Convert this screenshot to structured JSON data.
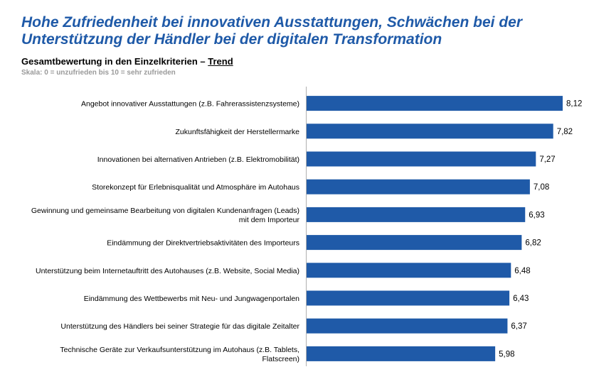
{
  "headline": "Hohe Zufriedenheit bei innovativen Ausstattungen, Schwächen bei der Unterstützung der Händler bei der digitalen Transformation",
  "subtitle_main": "Gesamtbewertung in den Einzelkriterien – ",
  "subtitle_trend": "Trend",
  "scale_note": "Skala: 0 = unzufrieden bis 10 = sehr zufrieden",
  "colors": {
    "bar": "#1f5aa8",
    "headline": "#1f5aa8",
    "axis": "#b0b0b0"
  },
  "chart_data": {
    "type": "bar",
    "orientation": "horizontal",
    "title": "Gesamtbewertung in den Einzelkriterien – Trend",
    "xlabel": "",
    "ylabel": "",
    "xlim": [
      0,
      10
    ],
    "categories": [
      [
        "Angebot innovativer Ausstattungen (z.B. Fahrerassistenzsysteme)"
      ],
      [
        "Zukunftsfähigkeit der Herstellermarke"
      ],
      [
        "Innovationen bei alternativen Antrieben (z.B. Elektromobilität)"
      ],
      [
        "Storekonzept für Erlebnisqualität und Atmosphäre im Autohaus"
      ],
      [
        "Gewinnung und gemeinsame Bearbeitung von digitalen Kundenanfragen (Leads)",
        "mit dem Importeur"
      ],
      [
        "Eindämmung der Direktvertriebsaktivitäten des Importeurs"
      ],
      [
        "Unterstützung beim Internetauftritt des Autohauses (z.B. Website, Social Media)"
      ],
      [
        "Eindämmung des Wettbewerbs mit Neu- und Jungwagenportalen"
      ],
      [
        "Unterstützung des Händlers bei seiner Strategie für das digitale Zeitalter"
      ],
      [
        "Technische Geräte zur Verkaufsunterstützung im Autohaus (z.B. Tablets,",
        "Flatscreen)"
      ]
    ],
    "values": [
      8.12,
      7.82,
      7.27,
      7.08,
      6.93,
      6.82,
      6.48,
      6.43,
      6.37,
      5.98
    ],
    "value_labels": [
      "8,12",
      "7,82",
      "7,27",
      "7,08",
      "6,93",
      "6,82",
      "6,48",
      "6,43",
      "6,37",
      "5,98"
    ]
  }
}
